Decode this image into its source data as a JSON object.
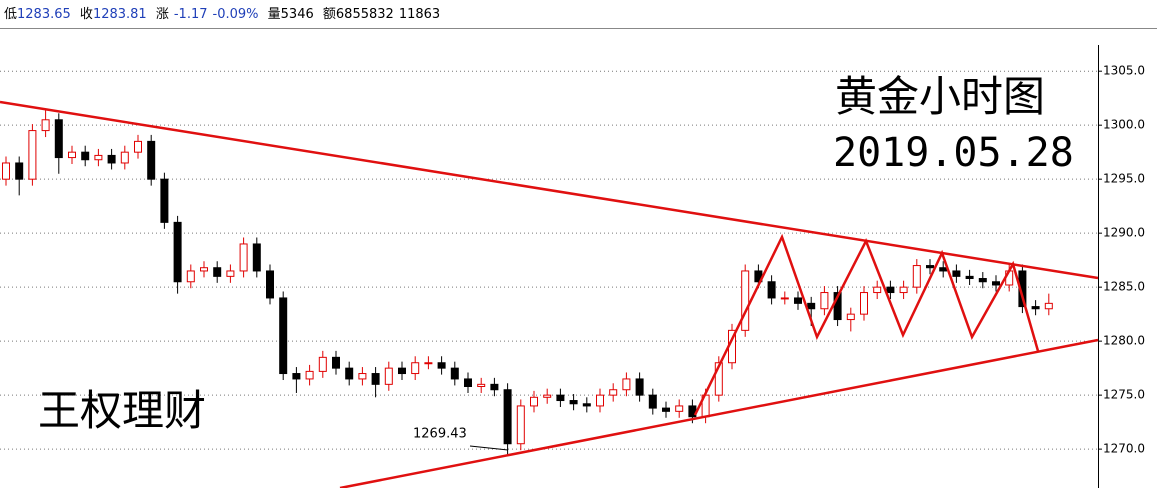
{
  "header": {
    "low_label": "低",
    "low": "1283.65",
    "close_label": "收",
    "close": "1283.81",
    "change_label": "涨",
    "change": "-1.17",
    "change_pct": "-0.09%",
    "volume_label": "量",
    "volume": "5346",
    "amount_label": "额",
    "amount": "6855832",
    "extra": "11863"
  },
  "chart_data": {
    "type": "candlestick",
    "annotations": {
      "title": "黄金小时图",
      "date": "2019.05.28",
      "watermark": "王权理财",
      "low_label": "1269.43"
    },
    "up_color": "#e00000",
    "down_color": "#000000",
    "grid": true,
    "ylim": [
      1266.4,
      1309.0
    ],
    "yticks": [
      {
        "value": 1270,
        "label": "1270.0"
      },
      {
        "value": 1275,
        "label": "1275.0"
      },
      {
        "value": 1280,
        "label": "1280.0"
      },
      {
        "value": 1285,
        "label": "1285.0"
      },
      {
        "value": 1290,
        "label": "1290.0"
      },
      {
        "value": 1295,
        "label": "1295.0"
      },
      {
        "value": 1300,
        "label": "1300.0"
      },
      {
        "value": 1305,
        "label": "1305.0"
      }
    ],
    "open": [
      1295,
      1296.5,
      1295,
      1299.5,
      1300.5,
      1297,
      1297.5,
      1296.8,
      1297.2,
      1296.5,
      1297.5,
      1298.5,
      1295,
      1291,
      1285.5,
      1286.5,
      1286.8,
      1286,
      1286.5,
      1289,
      1286.5,
      1284,
      1277,
      1276.5,
      1277.2,
      1278.5,
      1277.5,
      1276.5,
      1277,
      1276,
      1277.5,
      1277,
      1278,
      1278,
      1277.5,
      1276.5,
      1275.8,
      1276,
      1275.5,
      1270.5,
      1274,
      1274.8,
      1275,
      1274.5,
      1274.2,
      1274,
      1275,
      1275.5,
      1276.5,
      1275,
      1273.8,
      1273.5,
      1274,
      1273,
      1275,
      1278,
      1281,
      1286.5,
      1285.5,
      1284,
      1284,
      1283.5,
      1283,
      1284.5,
      1282,
      1282.5,
      1284.5,
      1285,
      1284.5,
      1285,
      1287,
      1286.8,
      1286.5,
      1286,
      1285.8,
      1285.5,
      1285.2,
      1286.5,
      1283.2,
      1283
    ],
    "high": [
      1297.1,
      1297.1,
      1300.1,
      1301.5,
      1301.1,
      1298.1,
      1298.1,
      1297.8,
      1297.8,
      1298.1,
      1299.1,
      1299.1,
      1295.6,
      1291.6,
      1287.1,
      1287.4,
      1287.4,
      1287.1,
      1289.6,
      1289.6,
      1287.1,
      1284.6,
      1277.6,
      1277.8,
      1279.1,
      1279.1,
      1278.1,
      1277.6,
      1277.6,
      1278.1,
      1278.1,
      1278.6,
      1278.6,
      1278.6,
      1278.1,
      1277.1,
      1276.6,
      1276.6,
      1276.1,
      1274.6,
      1275.4,
      1275.6,
      1275.6,
      1275.1,
      1274.8,
      1275.6,
      1276.1,
      1277.1,
      1277.1,
      1275.6,
      1274.4,
      1274.6,
      1274.6,
      1275.6,
      1278.6,
      1281.6,
      1287.1,
      1287.1,
      1286.1,
      1284.6,
      1284.6,
      1284.1,
      1285.1,
      1285.1,
      1283.1,
      1285.1,
      1285.6,
      1285.6,
      1285.6,
      1287.6,
      1287.6,
      1287.4,
      1287.1,
      1286.6,
      1286.4,
      1286.1,
      1287.1,
      1287.1,
      1283.8,
      1284.4
    ],
    "low": [
      1294.4,
      1293.5,
      1294.4,
      1298.9,
      1295.5,
      1296.4,
      1296.2,
      1296.2,
      1295.9,
      1295.9,
      1296.9,
      1294.4,
      1290.4,
      1284.4,
      1284.9,
      1285.9,
      1285.4,
      1285.4,
      1285.9,
      1285.9,
      1283.4,
      1276.4,
      1275.2,
      1275.9,
      1276.6,
      1276.9,
      1275.9,
      1275.9,
      1274.8,
      1275.4,
      1276.4,
      1276.4,
      1277.4,
      1276.9,
      1275.9,
      1275.2,
      1275.2,
      1274.9,
      1269.43,
      1269.9,
      1273.4,
      1274.2,
      1273.9,
      1273.6,
      1273.4,
      1273.4,
      1274.4,
      1274.9,
      1274.4,
      1273.2,
      1272.9,
      1272.9,
      1272.4,
      1272.4,
      1274.4,
      1277.4,
      1280.4,
      1284.9,
      1283.4,
      1283.4,
      1282.9,
      1281.4,
      1282.4,
      1281.4,
      1280.9,
      1281.9,
      1283.9,
      1283.9,
      1283.9,
      1284.4,
      1286.2,
      1285.9,
      1285.4,
      1285.2,
      1284.9,
      1284.6,
      1284.6,
      1282.6,
      1282.4,
      1282.4
    ],
    "close": [
      1296.5,
      1295,
      1299.5,
      1300.5,
      1297,
      1297.5,
      1296.8,
      1297.2,
      1296.5,
      1297.5,
      1298.5,
      1295,
      1291,
      1285.5,
      1286.5,
      1286.8,
      1286,
      1286.5,
      1289,
      1286.5,
      1284,
      1277,
      1276.5,
      1277.2,
      1278.5,
      1277.5,
      1276.5,
      1277,
      1276,
      1277.5,
      1277,
      1278,
      1278,
      1277.5,
      1276.5,
      1275.8,
      1276,
      1275.5,
      1270.5,
      1274,
      1274.8,
      1275,
      1274.5,
      1274.2,
      1274,
      1275,
      1275.5,
      1276.5,
      1275,
      1273.8,
      1273.5,
      1274,
      1273,
      1275,
      1278,
      1281,
      1286.5,
      1285.5,
      1284,
      1284,
      1283.5,
      1283,
      1284.5,
      1282,
      1282.5,
      1284.5,
      1285,
      1284.5,
      1285,
      1287,
      1286.8,
      1286.5,
      1286,
      1285.8,
      1285.5,
      1285.2,
      1286.5,
      1283.2,
      1283,
      1283.5
    ]
  }
}
